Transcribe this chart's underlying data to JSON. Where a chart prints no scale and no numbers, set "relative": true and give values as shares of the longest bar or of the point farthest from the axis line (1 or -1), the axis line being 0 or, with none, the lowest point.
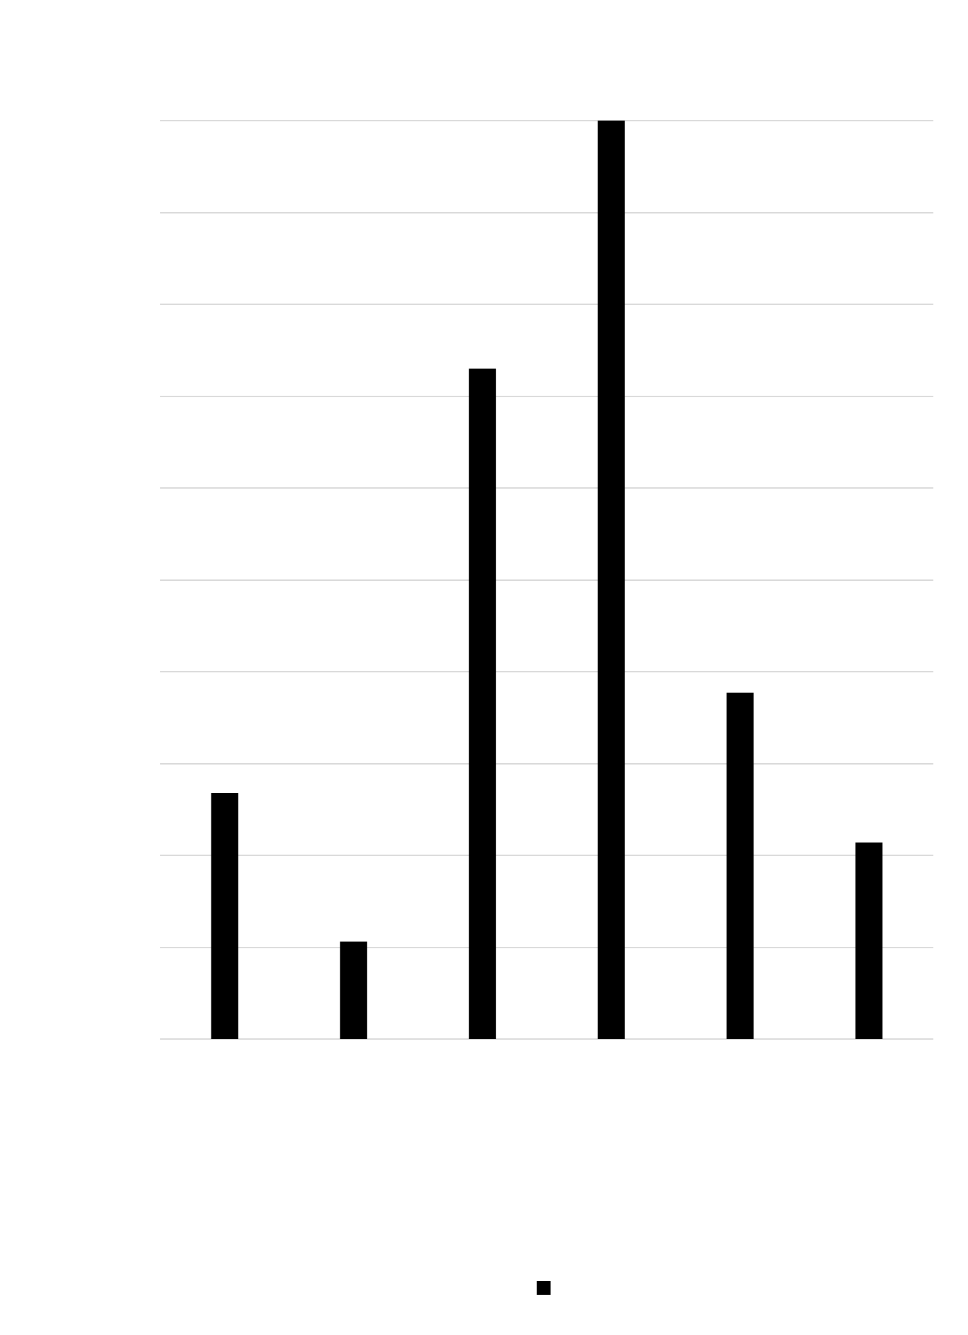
{
  "chart_data": {
    "type": "bar",
    "relative": true,
    "categories": [
      null,
      null,
      null,
      null,
      null,
      null
    ],
    "series": [
      {
        "color": "#000000",
        "values": [
          0.268,
          0.106,
          0.73,
          1,
          0.377,
          0.214
        ]
      }
    ],
    "grid": "y"
  }
}
